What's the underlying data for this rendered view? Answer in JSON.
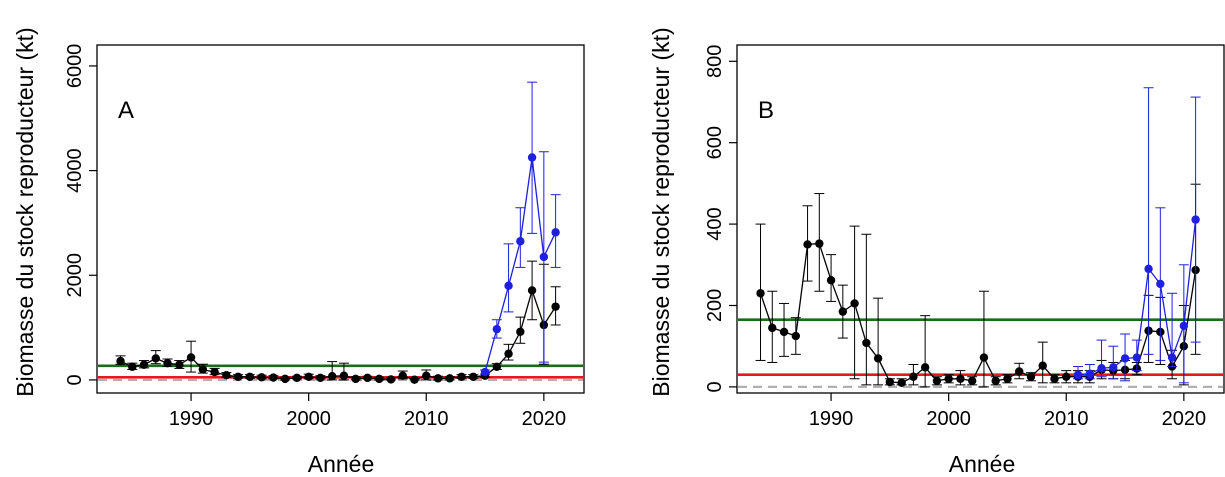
{
  "chart_data": [
    {
      "type": "line",
      "panel_label": "A",
      "xlabel": "Année",
      "ylabel": "Biomasse du stock reproducteur (kt)",
      "xlim": [
        1982,
        2023.5
      ],
      "ylim": [
        -250,
        6400
      ],
      "xticks": [
        1990,
        2000,
        2010,
        2020
      ],
      "yticks": [
        0,
        2000,
        4000,
        6000
      ],
      "grid": false,
      "reference_lines": [
        {
          "color": "#1a6b1a",
          "y": 270,
          "style": "solid"
        },
        {
          "color": "#e8191c",
          "y": 50,
          "style": "solid"
        },
        {
          "color": "#b0b0b0",
          "y": 0,
          "style": "dashed"
        }
      ],
      "series": [
        {
          "color": "#000000",
          "x": [
            1984,
            1985,
            1986,
            1987,
            1988,
            1989,
            1990,
            1991,
            1992,
            1993,
            1994,
            1995,
            1996,
            1997,
            1998,
            1999,
            2000,
            2001,
            2002,
            2003,
            2004,
            2005,
            2006,
            2007,
            2008,
            2009,
            2010,
            2011,
            2012,
            2013,
            2014,
            2015,
            2016,
            2017,
            2018,
            2019,
            2020,
            2021
          ],
          "y": [
            360,
            250,
            290,
            410,
            320,
            290,
            430,
            200,
            150,
            90,
            60,
            60,
            50,
            45,
            20,
            40,
            60,
            40,
            70,
            80,
            20,
            40,
            20,
            10,
            80,
            5,
            80,
            30,
            30,
            60,
            60,
            80,
            250,
            500,
            920,
            1710,
            1050,
            1400
          ],
          "lo": [
            300,
            200,
            230,
            310,
            260,
            220,
            150,
            130,
            100,
            50,
            30,
            30,
            20,
            20,
            0,
            20,
            20,
            20,
            0,
            0,
            0,
            20,
            0,
            0,
            20,
            0,
            0,
            0,
            0,
            30,
            30,
            50,
            200,
            380,
            700,
            1150,
            300,
            1050
          ],
          "hi": [
            460,
            320,
            370,
            560,
            400,
            370,
            740,
            300,
            220,
            140,
            100,
            100,
            90,
            80,
            50,
            70,
            110,
            80,
            350,
            320,
            60,
            70,
            50,
            40,
            170,
            30,
            190,
            70,
            60,
            100,
            100,
            110,
            310,
            680,
            1200,
            2270,
            2210,
            1780
          ]
        },
        {
          "color": "#1f1fdf",
          "x": [
            2015,
            2016,
            2017,
            2018,
            2019,
            2020,
            2021
          ],
          "y": [
            150,
            970,
            1800,
            2650,
            4250,
            2350,
            2820
          ],
          "lo": [
            110,
            800,
            1300,
            2150,
            2800,
            340,
            2150
          ],
          "hi": [
            190,
            1150,
            2600,
            3290,
            5690,
            4360,
            3540
          ]
        }
      ]
    },
    {
      "type": "line",
      "panel_label": "B",
      "xlabel": "Année",
      "ylabel": "Biomasse du stock reproducteur (kt)",
      "xlim": [
        1982,
        2023.5
      ],
      "ylim": [
        -15,
        840
      ],
      "xticks": [
        1990,
        2000,
        2010,
        2020
      ],
      "yticks": [
        0,
        200,
        400,
        600,
        800
      ],
      "grid": false,
      "reference_lines": [
        {
          "color": "#1a6b1a",
          "y": 165,
          "style": "solid"
        },
        {
          "color": "#e8191c",
          "y": 30,
          "style": "solid"
        },
        {
          "color": "#b0b0b0",
          "y": 0,
          "style": "dashed"
        }
      ],
      "series": [
        {
          "color": "#000000",
          "x": [
            1984,
            1985,
            1986,
            1987,
            1988,
            1989,
            1990,
            1991,
            1992,
            1993,
            1994,
            1995,
            1996,
            1997,
            1998,
            1999,
            2000,
            2001,
            2002,
            2003,
            2004,
            2005,
            2006,
            2007,
            2008,
            2009,
            2010,
            2011,
            2012,
            2013,
            2014,
            2015,
            2016,
            2017,
            2018,
            2019,
            2020,
            2021
          ],
          "y": [
            230,
            145,
            135,
            125,
            350,
            352,
            262,
            185,
            205,
            108,
            70,
            12,
            10,
            25,
            48,
            15,
            20,
            20,
            15,
            72,
            15,
            20,
            38,
            25,
            52,
            20,
            25,
            25,
            25,
            42,
            40,
            42,
            45,
            138,
            135,
            50,
            100,
            287
          ],
          "lo": [
            65,
            60,
            75,
            80,
            260,
            235,
            210,
            120,
            20,
            5,
            5,
            5,
            5,
            5,
            0,
            5,
            10,
            5,
            5,
            0,
            5,
            10,
            20,
            15,
            10,
            10,
            10,
            10,
            10,
            20,
            20,
            20,
            30,
            60,
            55,
            20,
            5,
            80
          ],
          "hi": [
            400,
            235,
            205,
            170,
            445,
            475,
            325,
            250,
            395,
            375,
            218,
            20,
            20,
            55,
            175,
            25,
            30,
            40,
            25,
            235,
            25,
            30,
            58,
            35,
            110,
            30,
            40,
            40,
            40,
            65,
            60,
            65,
            60,
            225,
            220,
            90,
            200,
            498
          ]
        },
        {
          "color": "#1f1fdf",
          "x": [
            2011,
            2012,
            2013,
            2014,
            2015,
            2016,
            2017,
            2018,
            2019,
            2020,
            2021
          ],
          "y": [
            30,
            32,
            46,
            48,
            70,
            72,
            290,
            253,
            72,
            150,
            411
          ],
          "lo": [
            20,
            20,
            25,
            20,
            15,
            40,
            80,
            65,
            50,
            10,
            110
          ],
          "hi": [
            50,
            55,
            115,
            100,
            130,
            115,
            735,
            440,
            230,
            300,
            712
          ]
        }
      ]
    }
  ]
}
